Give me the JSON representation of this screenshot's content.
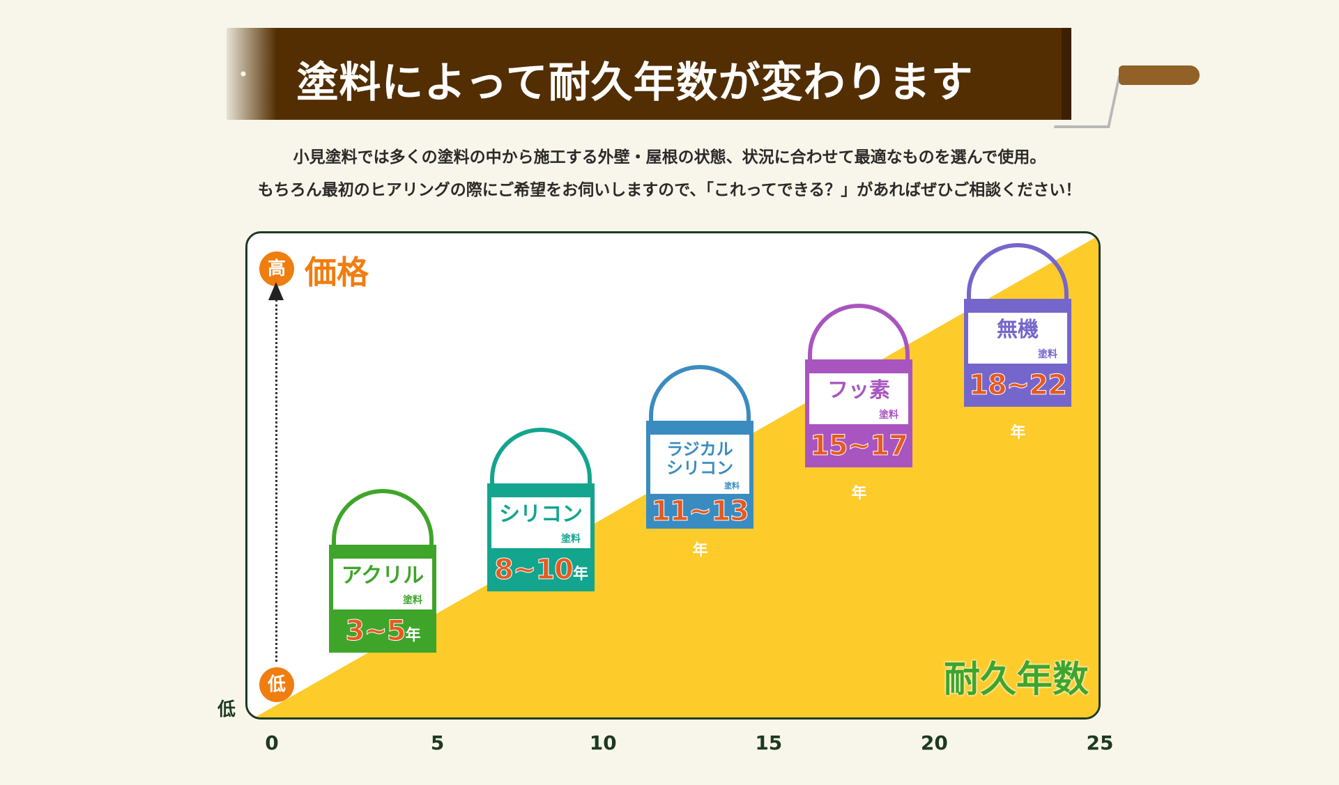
{
  "title": "塗料によって耐久年数が変わります",
  "description": [
    "小見塗料では多くの塗料の中から施工する外壁・屋根の状態、状況に合わせて最適なものを選んで使用。",
    "もちろん最初のヒアリングの際にご希望をお伺いしますので、「これってできる？」があればぜひご相談ください！"
  ],
  "chart_data": {
    "type": "diagram",
    "y_axis": {
      "label": "価格",
      "high": "高",
      "low": "低",
      "low_outside": "低"
    },
    "x_axis": {
      "label": "耐久年数",
      "ticks": [
        "0",
        "5",
        "10",
        "15",
        "20",
        "25"
      ],
      "range": [
        0,
        25
      ]
    },
    "paints": [
      {
        "name": "アクリル",
        "kind": "塗料",
        "years": "3~5",
        "unit": "年",
        "min": 3,
        "max": 5,
        "color": "#3fa52a"
      },
      {
        "name": "シリコン",
        "kind": "塗料",
        "years": "8~10",
        "unit": "年",
        "min": 8,
        "max": 10,
        "color": "#13a58e"
      },
      {
        "name": "ラジカル シリコン",
        "kind": "塗料",
        "years": "11~13",
        "unit": "年",
        "min": 11,
        "max": 13,
        "color": "#3a8cc0"
      },
      {
        "name": "フッ素",
        "kind": "塗料",
        "years": "15~17",
        "unit": "年",
        "min": 15,
        "max": 17,
        "color": "#a955c0"
      },
      {
        "name": "無機",
        "kind": "塗料",
        "years": "18~22",
        "unit": "年",
        "min": 18,
        "max": 22,
        "color": "#7566cc"
      }
    ]
  },
  "colors": {
    "banner": "#522e02",
    "fill": "#fdcb2a",
    "border": "#1d3a20",
    "accent": "#f07d10"
  }
}
